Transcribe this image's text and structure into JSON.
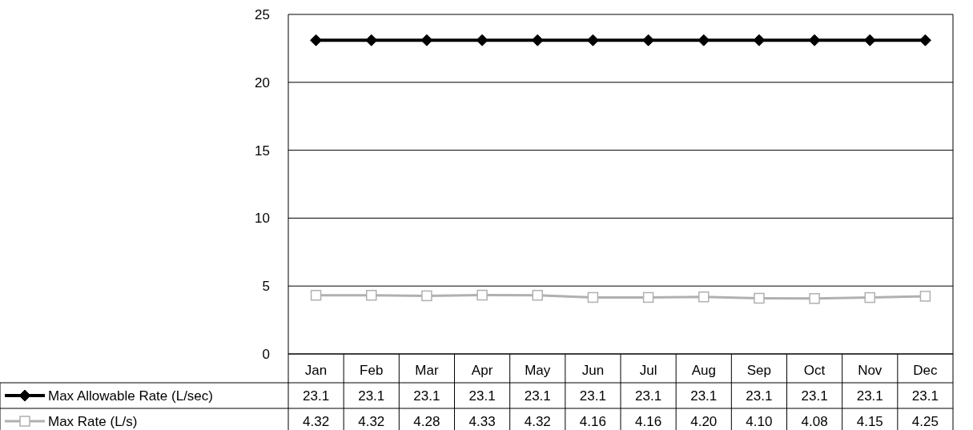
{
  "chart_data": {
    "type": "line",
    "categories": [
      "Jan",
      "Feb",
      "Mar",
      "Apr",
      "May",
      "Jun",
      "Jul",
      "Aug",
      "Sep",
      "Oct",
      "Nov",
      "Dec"
    ],
    "series": [
      {
        "name": "Max Allowable Rate (L/sec)",
        "color": "#000000",
        "marker": "diamond",
        "values": [
          23.1,
          23.1,
          23.1,
          23.1,
          23.1,
          23.1,
          23.1,
          23.1,
          23.1,
          23.1,
          23.1,
          23.1
        ],
        "value_labels": [
          "23.1",
          "23.1",
          "23.1",
          "23.1",
          "23.1",
          "23.1",
          "23.1",
          "23.1",
          "23.1",
          "23.1",
          "23.1",
          "23.1"
        ]
      },
      {
        "name": "Max Rate (L/s)",
        "color": "#b0b0b0",
        "marker": "square",
        "values": [
          4.32,
          4.32,
          4.28,
          4.33,
          4.32,
          4.16,
          4.16,
          4.2,
          4.1,
          4.08,
          4.15,
          4.25
        ],
        "value_labels": [
          "4.32",
          "4.32",
          "4.28",
          "4.33",
          "4.32",
          "4.16",
          "4.16",
          "4.20",
          "4.10",
          "4.08",
          "4.15",
          "4.25"
        ]
      }
    ],
    "ylim": [
      0,
      25
    ],
    "yticks": [
      0,
      5,
      10,
      15,
      20,
      25
    ],
    "grid": "y",
    "legend": "bottom"
  }
}
